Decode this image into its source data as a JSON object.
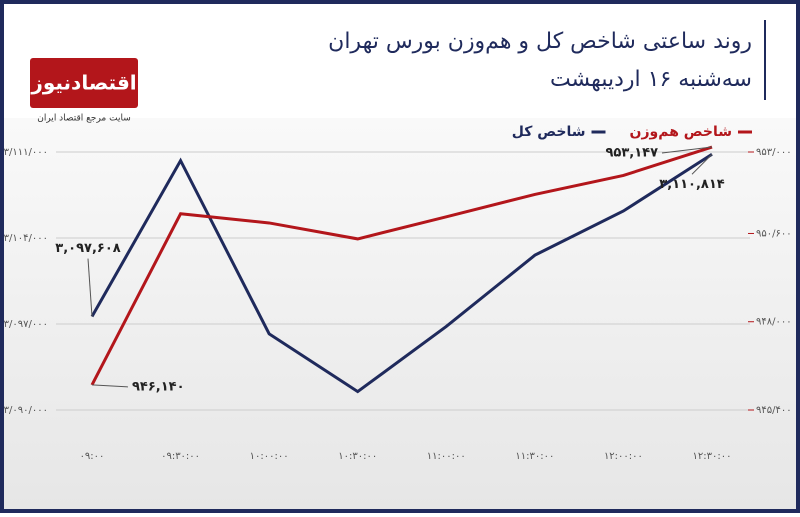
{
  "chart_data": {
    "type": "line",
    "title": "روند ساعتی شاخص کل و هم‌وزن بورس تهران",
    "subtitle": "سه‌شنبه ۱۶ اردیبهشت",
    "logo": {
      "name": "اقتصادنیوز",
      "tagline": "سایت مرجع اقتصاد ایران"
    },
    "categories": [
      "۰۹:۰۰",
      "۰۹:۳۰:۰۰",
      "۱۰:۰۰:۰۰",
      "۱۰:۳۰:۰۰",
      "۱۱:۰۰:۰۰",
      "۱۱:۳۰:۰۰",
      "۱۲:۰۰:۰۰",
      "۱۲:۳۰:۰۰"
    ],
    "series": [
      {
        "name": "شاخص کل",
        "color": "#1f2a5c",
        "values": [
          3097608,
          3110300,
          3096200,
          3091500,
          3096800,
          3102600,
          3106200,
          3110814
        ],
        "value_labels": [
          "۳,۰۹۷,۶۰۸",
          null,
          null,
          null,
          null,
          null,
          null,
          "۳,۱۱۰,۸۱۴"
        ]
      },
      {
        "name": "شاخص هم‌وزن",
        "color": "#b3161b",
        "axis": "y2",
        "values": [
          946140,
          951180,
          950910,
          950440,
          951090,
          951750,
          952310,
          953147
        ],
        "value_labels": [
          "۹۴۶,۱۴۰",
          null,
          null,
          null,
          null,
          null,
          null,
          "۹۵۳,۱۴۷"
        ]
      }
    ],
    "ylim": [
      3090000,
      3111000
    ],
    "yticks": [
      {
        "value": 3090000,
        "label": "۳/۰۹۰/۰۰۰"
      },
      {
        "value": 3097000,
        "label": "۳/۰۹۷/۰۰۰"
      },
      {
        "value": 3104000,
        "label": "۳/۱۰۴/۰۰۰"
      },
      {
        "value": 3111000,
        "label": "۳/۱۱۱/۰۰۰"
      }
    ],
    "y2lim": [
      945400,
      953000
    ],
    "y2ticks": [
      {
        "value": 945400,
        "label": "۹۴۵/۴۰۰"
      },
      {
        "value": 948000,
        "label": "۹۴۸/۰۰۰"
      },
      {
        "value": 950600,
        "label": "۹۵۰/۶۰۰"
      },
      {
        "value": 953000,
        "label": "۹۵۳/۰۰۰"
      }
    ],
    "grid": true
  }
}
